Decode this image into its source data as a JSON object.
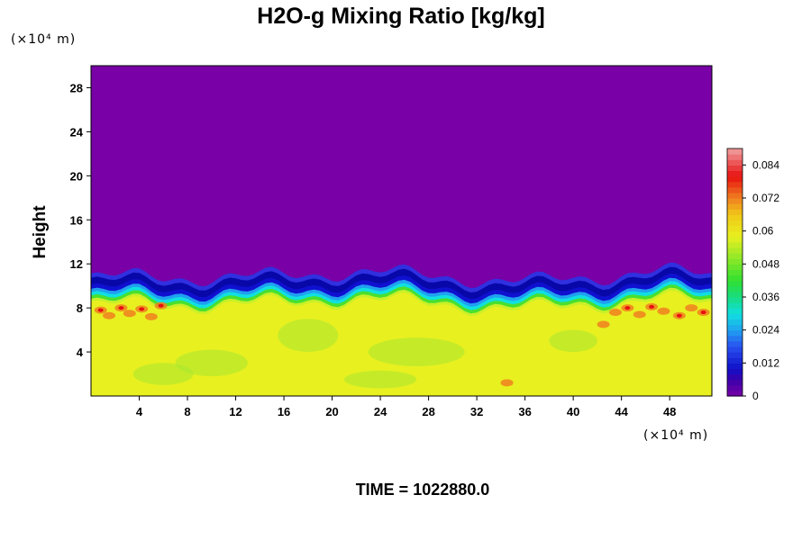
{
  "chart_data": {
    "type": "heatmap",
    "title": "H2O-g Mixing Ratio [kg/kg]",
    "ylabel": "Height",
    "x_unit_label": "(×10⁴ m)",
    "y_unit_label": "(×10⁴ m)",
    "xlim": [
      0,
      51.5
    ],
    "ylim": [
      0,
      30
    ],
    "x_ticks": [
      4,
      8,
      12,
      16,
      20,
      24,
      28,
      32,
      36,
      40,
      44,
      48
    ],
    "y_ticks": [
      4,
      8,
      12,
      16,
      20,
      24,
      28
    ],
    "colorbar": {
      "min": 0,
      "max": 0.09,
      "ticks": [
        0,
        0.012,
        0.024,
        0.036,
        0.048,
        0.06,
        0.072,
        0.084
      ],
      "tick_labels": [
        "0",
        "0.012",
        "0.024",
        "0.036",
        "0.048",
        "0.06",
        "0.072",
        "0.084"
      ]
    },
    "field_summary": {
      "upper_layer_value": 0,
      "lower_layer_value": 0.06,
      "transition_height": 9.5,
      "hotspot_value": 0.075,
      "hotspot_regions": [
        "near x=0-6, height 7-8.5",
        "near x=43-51, height 7-8.5"
      ]
    },
    "footer": "TIME = 1022880.0"
  },
  "colors": {
    "purple": "#7800a6",
    "blue": "#1010d0",
    "cyan": "#10e0e0",
    "green": "#48e030",
    "yellow": "#e8f020",
    "orange": "#f08020",
    "red": "#e81010",
    "pink": "#f0a0a0"
  }
}
